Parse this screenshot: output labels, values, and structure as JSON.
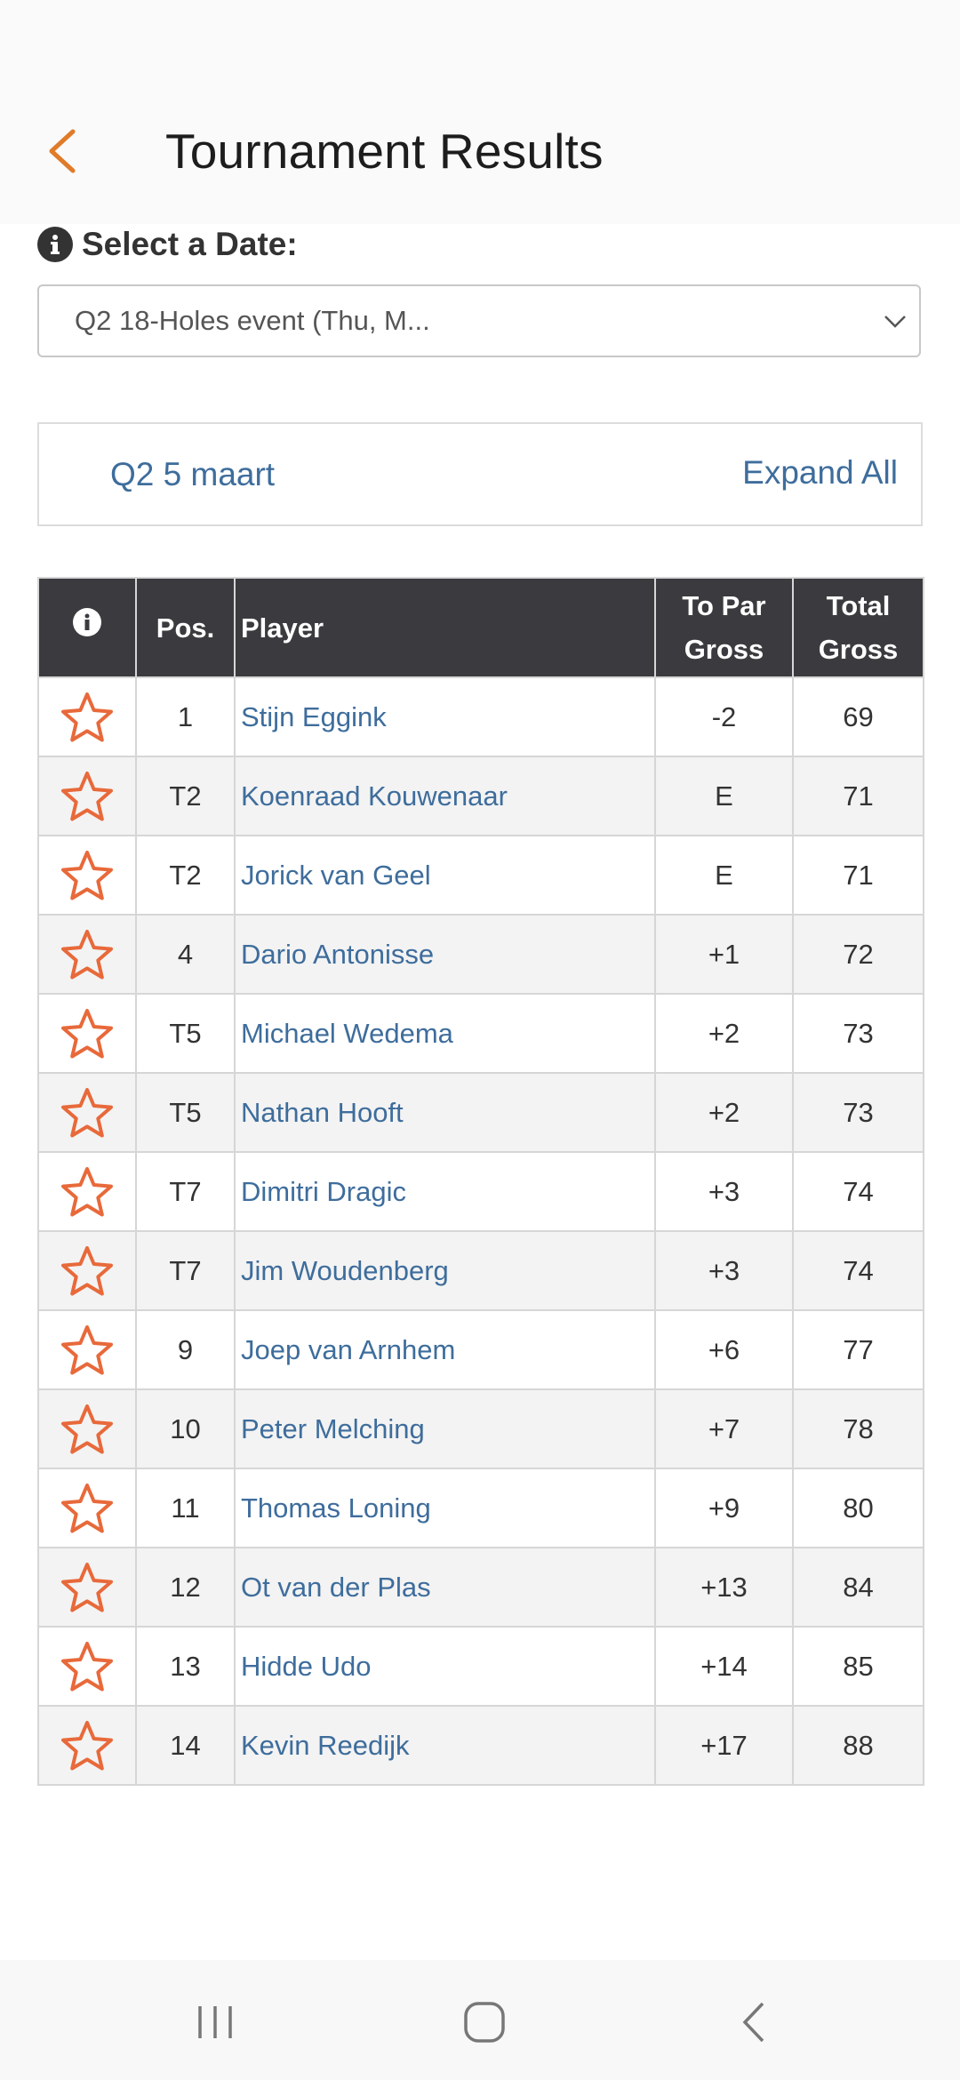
{
  "header": {
    "title": "Tournament Results",
    "back_icon": "chevron-left-icon",
    "accent_color": "#e07b2a"
  },
  "date_picker": {
    "label": "Select a Date:",
    "selected": "Q2 18-Holes event (Thu, M..."
  },
  "round": {
    "name": "Q2 5 maart",
    "expand_label": "Expand All"
  },
  "table": {
    "headers": {
      "info": "i",
      "pos": "Pos.",
      "player": "Player",
      "to_par_line1": "To Par",
      "to_par_line2": "Gross",
      "total_line1": "Total",
      "total_line2": "Gross"
    },
    "star_color": "#e8693a",
    "link_color": "#3e6d9c",
    "rows": [
      {
        "pos": "1",
        "player": "Stijn Eggink",
        "to_par": "-2",
        "total": "69"
      },
      {
        "pos": "T2",
        "player": "Koenraad Kouwenaar",
        "to_par": "E",
        "total": "71"
      },
      {
        "pos": "T2",
        "player": "Jorick van Geel",
        "to_par": "E",
        "total": "71"
      },
      {
        "pos": "4",
        "player": "Dario Antonisse",
        "to_par": "+1",
        "total": "72"
      },
      {
        "pos": "T5",
        "player": "Michael Wedema",
        "to_par": "+2",
        "total": "73"
      },
      {
        "pos": "T5",
        "player": "Nathan Hooft",
        "to_par": "+2",
        "total": "73"
      },
      {
        "pos": "T7",
        "player": "Dimitri Dragic",
        "to_par": "+3",
        "total": "74"
      },
      {
        "pos": "T7",
        "player": "Jim Woudenberg",
        "to_par": "+3",
        "total": "74"
      },
      {
        "pos": "9",
        "player": "Joep van Arnhem",
        "to_par": "+6",
        "total": "77"
      },
      {
        "pos": "10",
        "player": "Peter Melching",
        "to_par": "+7",
        "total": "78"
      },
      {
        "pos": "11",
        "player": "Thomas Loning",
        "to_par": "+9",
        "total": "80"
      },
      {
        "pos": "12",
        "player": "Ot van der Plas",
        "to_par": "+13",
        "total": "84"
      },
      {
        "pos": "13",
        "player": "Hidde Udo",
        "to_par": "+14",
        "total": "85"
      },
      {
        "pos": "14",
        "player": "Kevin Reedijk",
        "to_par": "+17",
        "total": "88"
      }
    ]
  },
  "navbar": {
    "recent_icon": "recent-apps-icon",
    "home_icon": "home-icon",
    "back_icon": "back-icon"
  }
}
